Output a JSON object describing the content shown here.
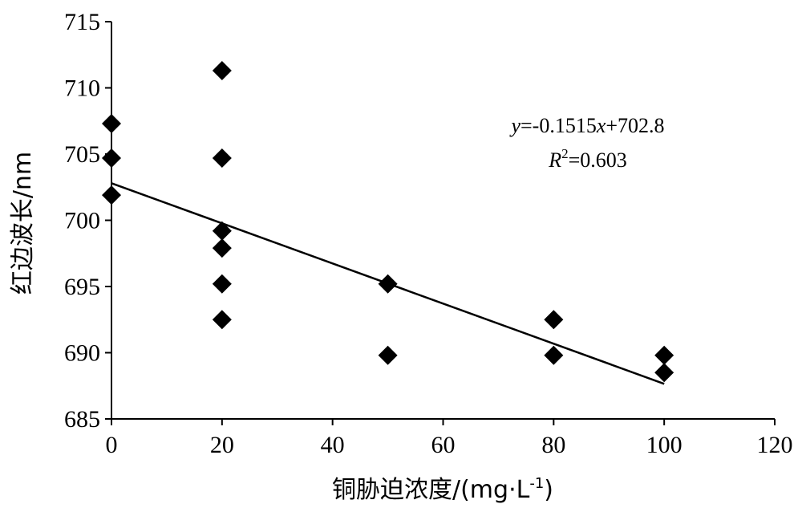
{
  "chart_data": {
    "type": "scatter",
    "xlabel": "铜胁迫浓度/(mg·L",
    "xlabel_sup": "-1",
    "xlabel_end": ")",
    "ylabel": "红边波长/nm",
    "xlim": [
      0,
      120
    ],
    "ylim": [
      685,
      715
    ],
    "xticks": [
      0,
      20,
      40,
      60,
      80,
      100,
      120
    ],
    "yticks": [
      685,
      690,
      695,
      700,
      705,
      710,
      715
    ],
    "grid": false,
    "series": [
      {
        "marker": "diamond",
        "color": "#000000",
        "points": [
          {
            "x": 0,
            "y": 707.3
          },
          {
            "x": 0,
            "y": 704.7
          },
          {
            "x": 0,
            "y": 701.9
          },
          {
            "x": 20,
            "y": 711.3
          },
          {
            "x": 20,
            "y": 704.7
          },
          {
            "x": 20,
            "y": 699.2
          },
          {
            "x": 20,
            "y": 697.9
          },
          {
            "x": 20,
            "y": 695.2
          },
          {
            "x": 20,
            "y": 692.5
          },
          {
            "x": 50,
            "y": 695.2
          },
          {
            "x": 50,
            "y": 689.8
          },
          {
            "x": 80,
            "y": 692.5
          },
          {
            "x": 80,
            "y": 689.8
          },
          {
            "x": 100,
            "y": 689.8
          },
          {
            "x": 100,
            "y": 688.5
          }
        ]
      }
    ],
    "trendline": {
      "slope": -0.1515,
      "intercept": 702.8,
      "x_range": [
        0,
        100
      ],
      "equation_parts": [
        "y",
        "=-0.1515",
        "x",
        "+702.8"
      ],
      "r2_parts": [
        "R",
        "2",
        "=0.603"
      ]
    }
  }
}
